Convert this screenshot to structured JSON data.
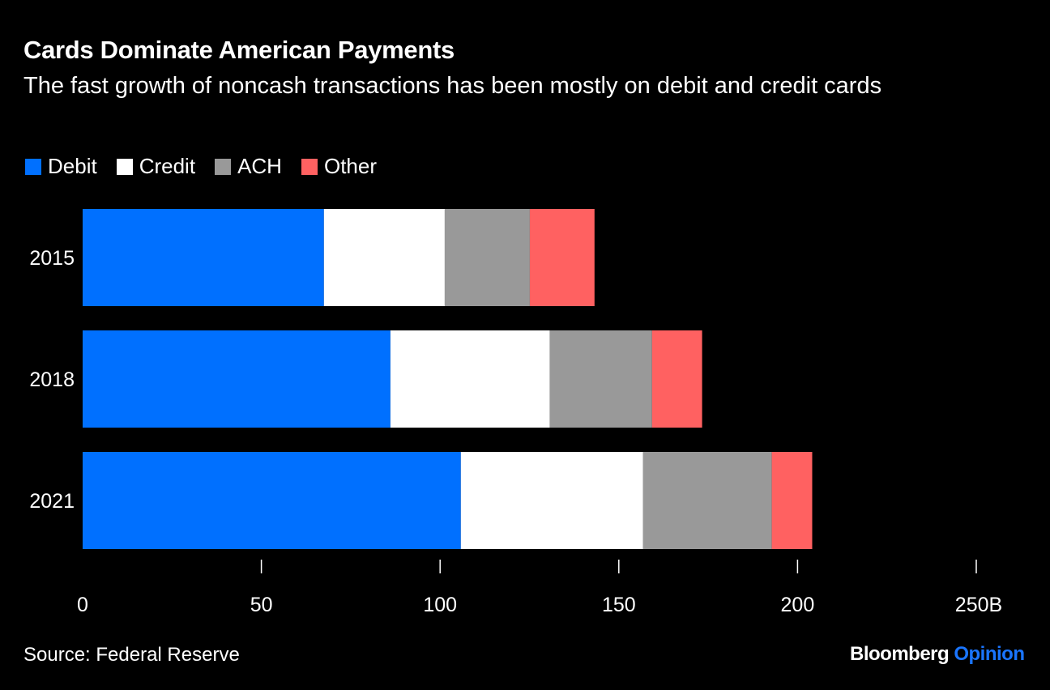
{
  "chart_data": {
    "type": "bar",
    "orientation": "horizontal",
    "stacked": true,
    "title": "Cards Dominate American Payments",
    "subtitle": "The fast growth of noncash transactions has been mostly on debit and credit cards",
    "categories": [
      "2015",
      "2018",
      "2021"
    ],
    "series": [
      {
        "name": "Debit",
        "color": "#0070ff",
        "values": [
          67.5,
          86.1,
          105.8
        ]
      },
      {
        "name": "Credit",
        "color": "#ffffff",
        "values": [
          33.8,
          44.6,
          51.0
        ]
      },
      {
        "name": "ACH",
        "color": "#999999",
        "values": [
          23.8,
          28.6,
          36.0
        ]
      },
      {
        "name": "Other",
        "color": "#ff6161",
        "values": [
          18.1,
          14.0,
          11.3
        ]
      }
    ],
    "xlim": [
      0,
      250
    ],
    "xticks": [
      "0",
      "50",
      "100",
      "150",
      "200",
      "250B"
    ],
    "xtick_values": [
      0,
      50,
      100,
      150,
      200,
      250
    ],
    "legend_position": "top-left",
    "grid": false
  },
  "footer": {
    "source": "Source: Federal Reserve",
    "brand": "Bloomberg",
    "brand_accent": "Opinion"
  }
}
